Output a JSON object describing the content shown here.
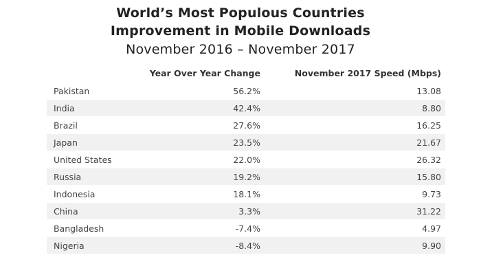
{
  "chart_data": {
    "type": "table",
    "title": "World’s Most Populous Countries",
    "title_line2": "Improvement in Mobile Downloads",
    "subtitle": "November 2016 – November 2017",
    "columns": [
      "",
      "Year Over Year Change",
      "November 2017 Speed (Mbps)"
    ],
    "rows": [
      {
        "country": "Pakistan",
        "yoy_change": "56.2%",
        "speed_mbps": "13.08"
      },
      {
        "country": "India",
        "yoy_change": "42.4%",
        "speed_mbps": "8.80"
      },
      {
        "country": "Brazil",
        "yoy_change": "27.6%",
        "speed_mbps": "16.25"
      },
      {
        "country": "Japan",
        "yoy_change": "23.5%",
        "speed_mbps": "21.67"
      },
      {
        "country": "United States",
        "yoy_change": "22.0%",
        "speed_mbps": "26.32"
      },
      {
        "country": "Russia",
        "yoy_change": "19.2%",
        "speed_mbps": "15.80"
      },
      {
        "country": "Indonesia",
        "yoy_change": "18.1%",
        "speed_mbps": "9.73"
      },
      {
        "country": "China",
        "yoy_change": "3.3%",
        "speed_mbps": "31.22"
      },
      {
        "country": "Bangladesh",
        "yoy_change": "-7.4%",
        "speed_mbps": "4.97"
      },
      {
        "country": "Nigeria",
        "yoy_change": "-8.4%",
        "speed_mbps": "9.90"
      }
    ],
    "row_stripe_color": "#f1f1f1"
  }
}
